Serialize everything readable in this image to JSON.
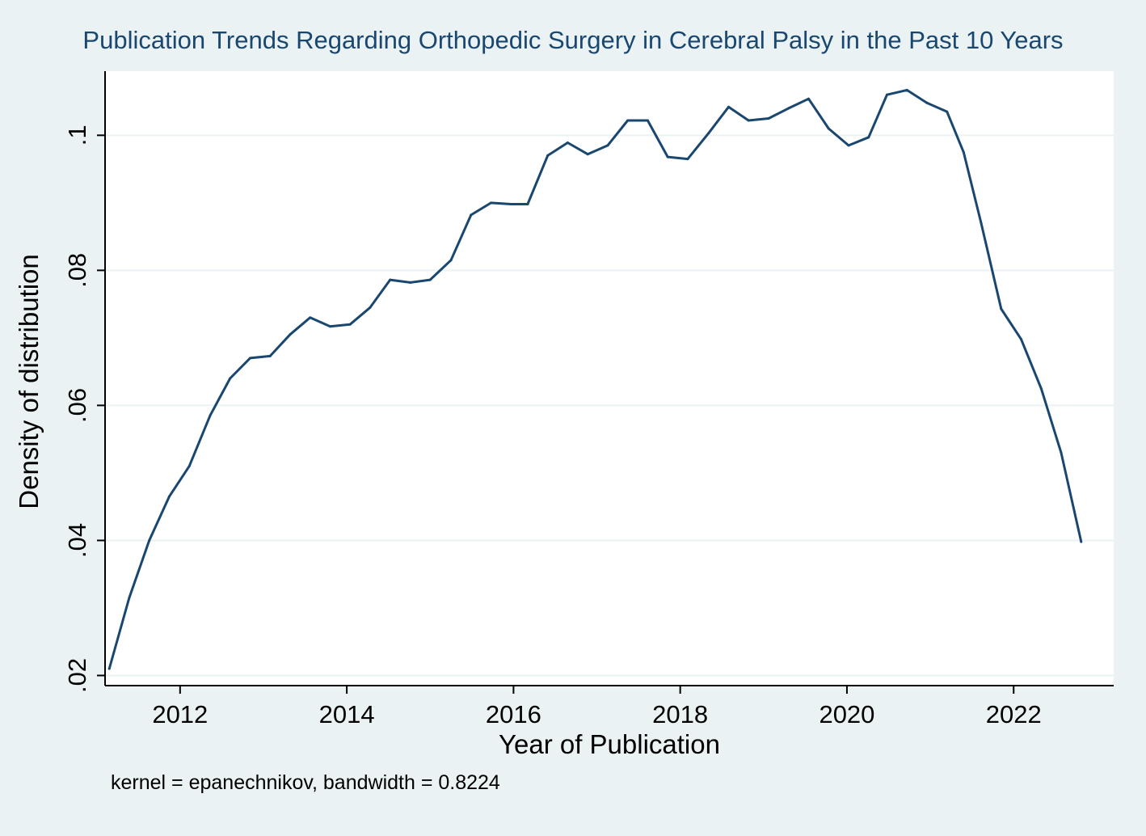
{
  "chart_data": {
    "type": "line",
    "title": "Publication Trends Regarding Orthopedic Surgery in Cerebral Palsy in the Past 10 Years",
    "xlabel": "Year of Publication",
    "ylabel": "Density of distribution",
    "note": "kernel = epanechnikov, bandwidth = 0.8224",
    "xlim": [
      2011.1,
      2023.2
    ],
    "ylim": [
      0.0185,
      0.1095
    ],
    "xticks": [
      2012,
      2014,
      2016,
      2018,
      2020,
      2022
    ],
    "xtick_labels": [
      "2012",
      "2014",
      "2016",
      "2018",
      "2020",
      "2022"
    ],
    "yticks": [
      0.02,
      0.04,
      0.06,
      0.08,
      0.1
    ],
    "ytick_labels": [
      ".02",
      ".04",
      ".06",
      ".08",
      ".1"
    ],
    "grid": true,
    "colors": {
      "background": "#eaf2f3",
      "plot_area": "#ffffff",
      "line": "#1a476f",
      "title": "#1a476f"
    },
    "series": [
      {
        "name": "density",
        "x": [
          2011.15,
          2011.39,
          2011.63,
          2011.87,
          2012.11,
          2012.36,
          2012.6,
          2012.84,
          2013.08,
          2013.32,
          2013.56,
          2013.8,
          2014.04,
          2014.28,
          2014.52,
          2014.76,
          2015.0,
          2015.25,
          2015.49,
          2015.73,
          2015.97,
          2016.17,
          2016.41,
          2016.65,
          2016.89,
          2017.13,
          2017.37,
          2017.61,
          2017.85,
          2018.09,
          2018.34,
          2018.58,
          2018.82,
          2019.06,
          2019.3,
          2019.54,
          2019.78,
          2020.02,
          2020.26,
          2020.48,
          2020.72,
          2020.96,
          2021.2,
          2021.4,
          2021.61,
          2021.85,
          2022.09,
          2022.33,
          2022.57,
          2022.81
        ],
        "y": [
          0.021,
          0.0315,
          0.04,
          0.0465,
          0.051,
          0.0585,
          0.064,
          0.067,
          0.0673,
          0.0705,
          0.073,
          0.0717,
          0.072,
          0.0745,
          0.0786,
          0.0782,
          0.0786,
          0.0815,
          0.0882,
          0.09,
          0.0898,
          0.0898,
          0.097,
          0.0989,
          0.0972,
          0.0985,
          0.1022,
          0.1022,
          0.0968,
          0.0965,
          0.1003,
          0.1042,
          0.1022,
          0.1025,
          0.104,
          0.1054,
          0.101,
          0.0985,
          0.0997,
          0.106,
          0.1067,
          0.1048,
          0.1035,
          0.0975,
          0.087,
          0.0743,
          0.0698,
          0.0625,
          0.053,
          0.0398
        ]
      }
    ]
  }
}
